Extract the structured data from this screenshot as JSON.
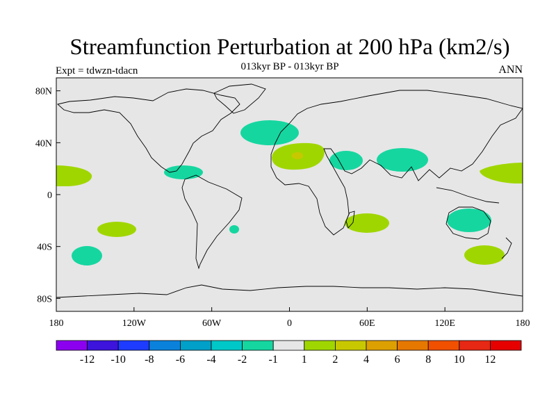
{
  "title": "Streamfunction Perturbation at 200 hPa (km2/s)",
  "subtitle": "013kyr BP - 013kyr BP",
  "left_label": "Expt = tdwzn-tdacn",
  "right_label": "ANN",
  "lat_ticks": [
    "80N",
    "40N",
    "0",
    "40S",
    "80S"
  ],
  "lon_ticks": [
    "180",
    "120W",
    "60W",
    "0",
    "60E",
    "120E",
    "180"
  ],
  "colors": {
    "ocean_background": "#e6e6e6",
    "neg_light": "#16d6a0",
    "pos_light": "#a0d600"
  },
  "colorbar": {
    "colors": [
      "#8c00f0",
      "#3c14dc",
      "#1e3cff",
      "#0a82dc",
      "#00a0c8",
      "#00c8c8",
      "#16d6a0",
      "#e6e6e6",
      "#a0d600",
      "#c8c800",
      "#dca000",
      "#e67800",
      "#f05000",
      "#e62814",
      "#e60000"
    ],
    "labels": [
      "-12",
      "-10",
      "-8",
      "-6",
      "-4",
      "-2",
      "-1",
      "1",
      "2",
      "4",
      "6",
      "8",
      "10",
      "12"
    ]
  },
  "chart_data": {
    "type": "map",
    "projection": "cylindrical equidistant",
    "field": "Streamfunction Perturbation at 200 hPa (km2/s)",
    "lat_range": [
      -90,
      90
    ],
    "lon_range": [
      -180,
      180
    ],
    "regions": [
      {
        "lon": -5,
        "lat": 45,
        "value_class": "-2 to -1"
      },
      {
        "lon": 50,
        "lat": 27,
        "value_class": "-2 to -1"
      },
      {
        "lon": 87,
        "lat": 28,
        "value_class": "-2 to -1"
      },
      {
        "lon": -82,
        "lat": 18,
        "value_class": "-2 to -1"
      },
      {
        "lon": -163,
        "lat": -47,
        "value_class": "-2 to -1"
      },
      {
        "lon": -42,
        "lat": -26,
        "value_class": "-2 to -1"
      },
      {
        "lon": 140,
        "lat": -19,
        "value_class": "-2 to -1"
      },
      {
        "lon": 15,
        "lat": 31,
        "value_class": "1 to 2"
      },
      {
        "lon": -173,
        "lat": 15,
        "value_class": "1 to 2"
      },
      {
        "lon": 169,
        "lat": 17,
        "value_class": "1 to 2"
      },
      {
        "lon": -135,
        "lat": -26,
        "value_class": "1 to 2"
      },
      {
        "lon": 60,
        "lat": -21,
        "value_class": "1 to 2"
      },
      {
        "lon": 152,
        "lat": -46,
        "value_class": "1 to 2"
      }
    ]
  }
}
